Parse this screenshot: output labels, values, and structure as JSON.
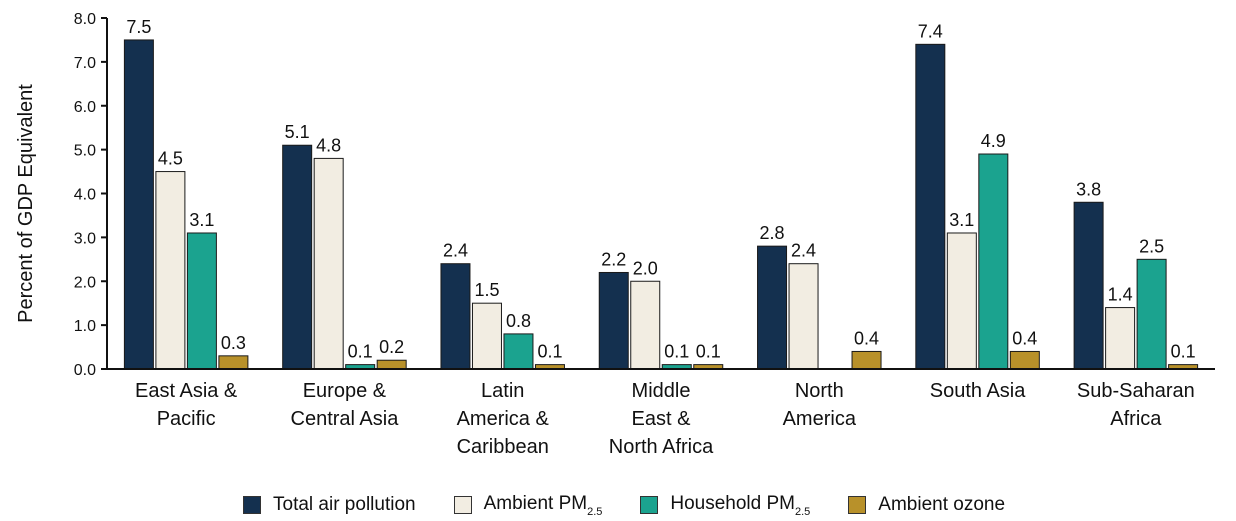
{
  "chart_data": {
    "type": "bar",
    "ylabel": "Percent of GDP Equivalent",
    "ylim": [
      0,
      8
    ],
    "yticks": [
      "0.0",
      "1.0",
      "2.0",
      "3.0",
      "4.0",
      "5.0",
      "6.0",
      "7.0",
      "8.0"
    ],
    "categories": [
      [
        "East Asia &",
        "Pacific"
      ],
      [
        "Europe &",
        "Central Asia"
      ],
      [
        "Latin",
        "America &",
        "Caribbean"
      ],
      [
        "Middle",
        "East &",
        "North Africa"
      ],
      [
        "North",
        "America"
      ],
      [
        "South Asia"
      ],
      [
        "Sub-Saharan",
        "Africa"
      ]
    ],
    "series": [
      {
        "name": "Total air pollution",
        "legend_text": "Total air pollution",
        "legend_sub": "",
        "color": "#14304f",
        "values": [
          7.5,
          5.1,
          2.4,
          2.2,
          2.8,
          7.4,
          3.8
        ],
        "labels": [
          "7.5",
          "5.1",
          "2.4",
          "2.2",
          "2.8",
          "7.4",
          "3.8"
        ]
      },
      {
        "name": "Ambient PM2.5",
        "legend_text": "Ambient PM",
        "legend_sub": "2.5",
        "color": "#f2ede2",
        "values": [
          4.5,
          4.8,
          1.5,
          2.0,
          2.4,
          3.1,
          1.4
        ],
        "labels": [
          "4.5",
          "4.8",
          "1.5",
          "2.0",
          "2.4",
          "3.1",
          "1.4"
        ]
      },
      {
        "name": "Household PM2.5",
        "legend_text": "Household PM",
        "legend_sub": "2.5",
        "color": "#1ba38f",
        "values": [
          3.1,
          0.1,
          0.8,
          0.1,
          0.0,
          4.9,
          2.5
        ],
        "labels": [
          "3.1",
          "0.1",
          "0.8",
          "0.1",
          "",
          "4.9",
          "2.5"
        ]
      },
      {
        "name": "Ambient ozone",
        "legend_text": "Ambient ozone",
        "legend_sub": "",
        "color": "#b8912a",
        "values": [
          0.3,
          0.2,
          0.1,
          0.1,
          0.4,
          0.4,
          0.1
        ],
        "labels": [
          "0.3",
          "0.2",
          "0.1",
          "0.1",
          "0.4",
          "0.4",
          "0.1"
        ]
      }
    ],
    "legend_position": "bottom"
  }
}
